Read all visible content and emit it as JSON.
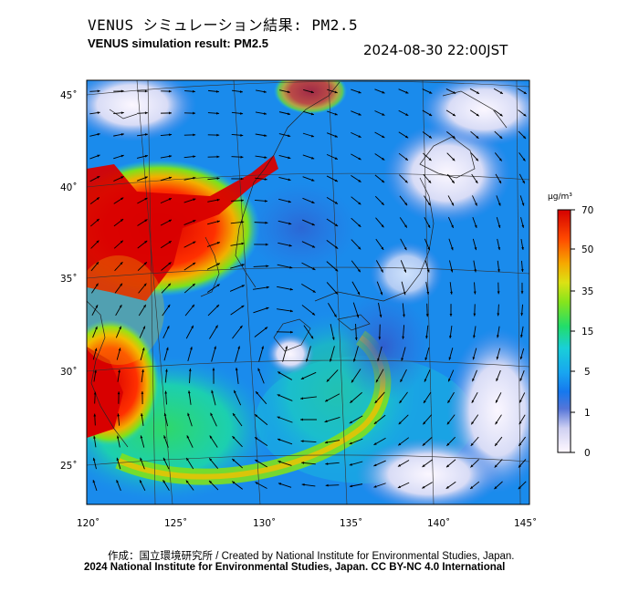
{
  "title_ja": "VENUS シミュレーション結果: PM2.5",
  "title_en": "VENUS simulation result: PM2.5",
  "timestamp": "2024-08-30 22:00JST",
  "map": {
    "lat_labels": [
      "45˚",
      "40˚",
      "35˚",
      "30˚",
      "25˚"
    ],
    "lon_labels": [
      "120˚",
      "125˚",
      "130˚",
      "135˚",
      "140˚",
      "145˚"
    ]
  },
  "colorbar": {
    "unit": "μg/m³",
    "ticks": [
      "70",
      "50",
      "35",
      "15",
      "5",
      "1",
      "0"
    ],
    "colors": [
      "#fff8ff",
      "#d8d4f4",
      "#5b78d8",
      "#1a86f2",
      "#19c7e8",
      "#24dc7a",
      "#79e51e",
      "#d8e216",
      "#f7a100",
      "#ff4600",
      "#d80000"
    ]
  },
  "footer_credit": "作成：国立環境研究所 / Created by National Institute for Environmental Studies, Japan.",
  "footer_license": "2024 National Institute for Environmental Studies, Japan. CC BY-NC 4.0 International"
}
